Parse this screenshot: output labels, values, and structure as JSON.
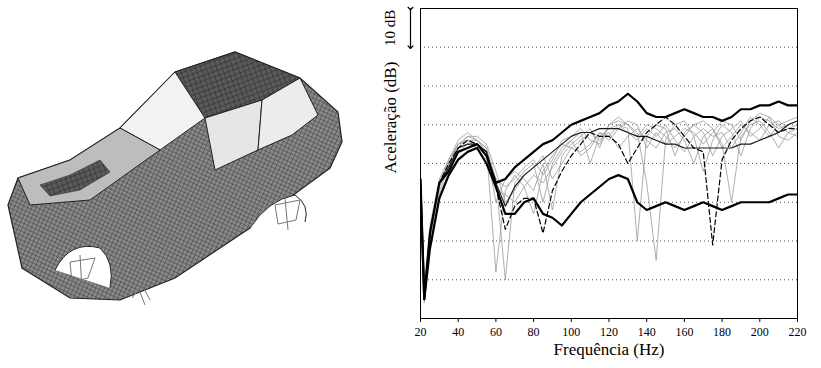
{
  "chart_data": {
    "type": "line",
    "x_label": "Frequência (Hz)",
    "y_label": "Aceleração (dB)",
    "annotation": "10 dB",
    "xlim": [
      20,
      220
    ],
    "xticks": [
      20,
      40,
      60,
      80,
      100,
      120,
      140,
      160,
      180,
      200,
      220
    ],
    "ylim": [
      0,
      80
    ],
    "yticks": [
      0,
      10,
      20,
      30,
      40,
      50,
      60,
      70,
      80
    ],
    "grid": true,
    "tick_labels": "x",
    "x": [
      20,
      22,
      25,
      30,
      35,
      40,
      45,
      50,
      55,
      60,
      65,
      70,
      75,
      80,
      85,
      90,
      95,
      100,
      105,
      110,
      115,
      120,
      125,
      130,
      135,
      140,
      145,
      150,
      155,
      160,
      165,
      170,
      175,
      180,
      185,
      190,
      195,
      200,
      205,
      210,
      215,
      220
    ],
    "series": [
      {
        "color": "#9a9a9a",
        "line_style": "solid",
        "values": [
          33,
          8,
          20,
          34,
          40,
          45,
          46,
          44,
          42,
          36,
          10,
          35,
          38,
          40,
          30,
          40,
          44,
          46,
          48,
          40,
          47,
          49,
          50,
          49,
          20,
          47,
          50,
          49,
          42,
          48,
          50,
          51,
          49,
          45,
          30,
          47,
          50,
          51,
          48,
          44,
          48,
          49
        ]
      },
      {
        "color": "#9a9a9a",
        "line_style": "solid",
        "values": [
          35,
          4,
          24,
          36,
          41,
          46,
          48,
          46,
          43,
          30,
          36,
          38,
          36,
          33,
          40,
          28,
          42,
          45,
          47,
          49,
          44,
          50,
          51,
          50,
          48,
          35,
          15,
          46,
          50,
          51,
          47,
          38,
          46,
          50,
          48,
          42,
          49,
          52,
          51,
          49,
          50,
          51
        ]
      },
      {
        "color": "#9a9a9a",
        "line_style": "solid",
        "values": [
          34,
          7,
          21,
          33,
          39,
          44,
          47,
          46,
          44,
          12,
          33,
          37,
          34,
          27,
          38,
          42,
          45,
          44,
          46,
          48,
          46,
          48,
          44,
          47,
          49,
          46,
          44,
          48,
          49,
          46,
          40,
          47,
          49,
          44,
          47,
          50,
          48,
          46,
          50,
          51,
          49,
          50
        ]
      },
      {
        "color": "#9a9a9a",
        "line_style": "solid",
        "values": [
          36,
          9,
          23,
          34,
          40,
          45,
          47,
          47,
          45,
          38,
          30,
          33,
          37,
          39,
          42,
          36,
          40,
          44,
          43,
          45,
          48,
          46,
          49,
          51,
          50,
          44,
          48,
          45,
          47,
          49,
          48,
          45,
          48,
          51,
          50,
          46,
          51,
          53,
          52,
          47,
          46,
          48
        ]
      },
      {
        "color": "#9a9a9a",
        "line_style": "solid",
        "values": [
          33,
          6,
          19,
          32,
          38,
          43,
          45,
          44,
          41,
          33,
          32,
          30,
          34,
          37,
          35,
          39,
          43,
          46,
          42,
          44,
          48,
          47,
          50,
          48,
          46,
          49,
          47,
          50,
          46,
          43,
          47,
          49,
          47,
          48,
          44,
          48,
          52,
          50,
          47,
          50,
          51,
          52
        ]
      },
      {
        "color": "#9a9a9a",
        "line_style": "solid",
        "values": [
          35,
          5,
          22,
          35,
          41,
          45,
          46,
          46,
          44,
          36,
          34,
          36,
          39,
          41,
          37,
          41,
          46,
          47,
          49,
          46,
          45,
          50,
          52,
          50,
          47,
          50,
          49,
          47,
          44,
          47,
          50,
          48,
          42,
          47,
          49,
          51,
          47,
          49,
          52,
          50,
          48,
          47
        ]
      },
      {
        "color": "#1a1a1a",
        "line_style": "solid",
        "values": [
          36,
          5,
          22,
          35,
          39,
          44,
          45,
          45,
          43,
          35,
          29,
          34,
          37,
          39,
          41,
          43,
          45,
          47,
          48,
          48,
          49,
          49,
          49,
          48,
          47,
          47,
          46,
          45,
          45,
          44,
          44,
          44,
          44,
          44,
          44,
          45,
          45,
          46,
          47,
          48,
          50,
          51
        ]
      },
      {
        "color": "#000000",
        "line_style": "dashed",
        "values": [
          35,
          5,
          22,
          35,
          40,
          44,
          46,
          45,
          43,
          34,
          23,
          29,
          31,
          31,
          22,
          33,
          38,
          42,
          45,
          48,
          47,
          47,
          45,
          40,
          44,
          48,
          50,
          52,
          50,
          47,
          44,
          43,
          19,
          41,
          46,
          49,
          51,
          52,
          50,
          48,
          49,
          49
        ]
      },
      {
        "color": "#000000",
        "line_style": "solid",
        "values": [
          36,
          5,
          22,
          35,
          38,
          43,
          44,
          45,
          42,
          35,
          36,
          39,
          41,
          43,
          45,
          46,
          48,
          50,
          51,
          52,
          53,
          55,
          56,
          58,
          56,
          53,
          52,
          52,
          53,
          54,
          53,
          52,
          52,
          51,
          52,
          54,
          54,
          55,
          55,
          56,
          55,
          55
        ]
      },
      {
        "color": "#000000",
        "line_style": "solid",
        "values": [
          34,
          5,
          18,
          31,
          37,
          41,
          43,
          44,
          40,
          34,
          27,
          27,
          30,
          31,
          27,
          26,
          24,
          27,
          30,
          32,
          34,
          36,
          37,
          36,
          30,
          28,
          29,
          30,
          29,
          28,
          29,
          30,
          29,
          28,
          29,
          30,
          30,
          30,
          30,
          31,
          32,
          32
        ]
      }
    ]
  }
}
